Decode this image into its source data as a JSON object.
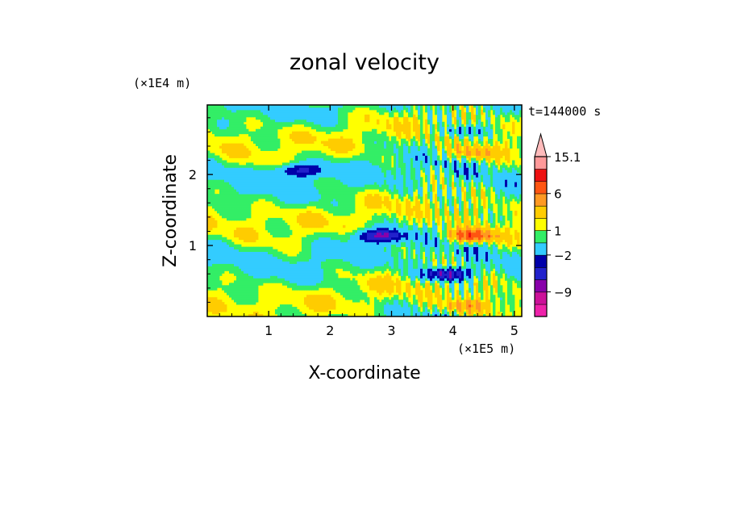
{
  "chart_data": {
    "type": "heatmap",
    "title": "zonal velocity",
    "xlabel": "X-coordinate",
    "ylabel": "Z-coordinate",
    "x_unit": "(×1E5 m)",
    "y_unit": "(×1E4 m)",
    "time_label": "t=144000 s",
    "xlim": [
      0,
      5.12
    ],
    "ylim": [
      0,
      2.98
    ],
    "x_ticks": [
      1,
      2,
      3,
      4,
      5
    ],
    "y_ticks": [
      1,
      2
    ],
    "colorbar": {
      "levels": [
        -15,
        -12,
        -9,
        -6,
        -4,
        -2,
        0,
        1,
        2,
        4,
        6,
        9,
        12,
        15.1
      ],
      "colors": [
        "#ee22aa",
        "#cc1199",
        "#8800aa",
        "#2222cc",
        "#0000aa",
        "#33ccff",
        "#33ee66",
        "#ffff00",
        "#ffcc00",
        "#ff9922",
        "#ff5511",
        "#ee1111",
        "#ff9999",
        "#ffbbbb"
      ],
      "labels": [
        {
          "value": 15.1,
          "text": "15.1"
        },
        {
          "value": 6,
          "text": "6"
        },
        {
          "value": 1,
          "text": "1"
        },
        {
          "value": -2,
          "text": "−2"
        },
        {
          "value": -9,
          "text": "−9"
        }
      ]
    },
    "features": [
      {
        "x": 2.8,
        "z": 1.14,
        "u": -7
      },
      {
        "x": 4.3,
        "z": 1.14,
        "u": 7
      },
      {
        "x": 3.9,
        "z": 0.6,
        "u": -7
      },
      {
        "x": 4.2,
        "z": 0.15,
        "u": 3
      },
      {
        "x": 1.5,
        "z": 2.06,
        "u": -5
      },
      {
        "x": 4.3,
        "z": 2.3,
        "u": 3
      },
      {
        "x": 4.1,
        "z": 2.6,
        "u": -3
      }
    ]
  }
}
